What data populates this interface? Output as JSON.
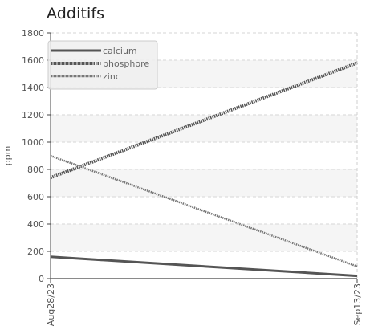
{
  "chart_data": {
    "type": "line",
    "title": "Additifs",
    "xlabel": "",
    "ylabel": "ppm",
    "x": [
      "Aug28/23",
      "Sep13/23"
    ],
    "ylim": [
      0,
      1800
    ],
    "yticks": [
      0,
      200,
      400,
      600,
      800,
      1000,
      1200,
      1400,
      1600,
      1800
    ],
    "grid": true,
    "legend_position": "top-left",
    "series": [
      {
        "name": "calcium",
        "values": [
          160,
          20
        ],
        "color": "#555555",
        "style": "solid"
      },
      {
        "name": "phosphore",
        "values": [
          740,
          1580
        ],
        "color": "#555555",
        "style": "dotted"
      },
      {
        "name": "zinc",
        "values": [
          900,
          90
        ],
        "color": "#777777",
        "style": "dotted"
      }
    ]
  }
}
